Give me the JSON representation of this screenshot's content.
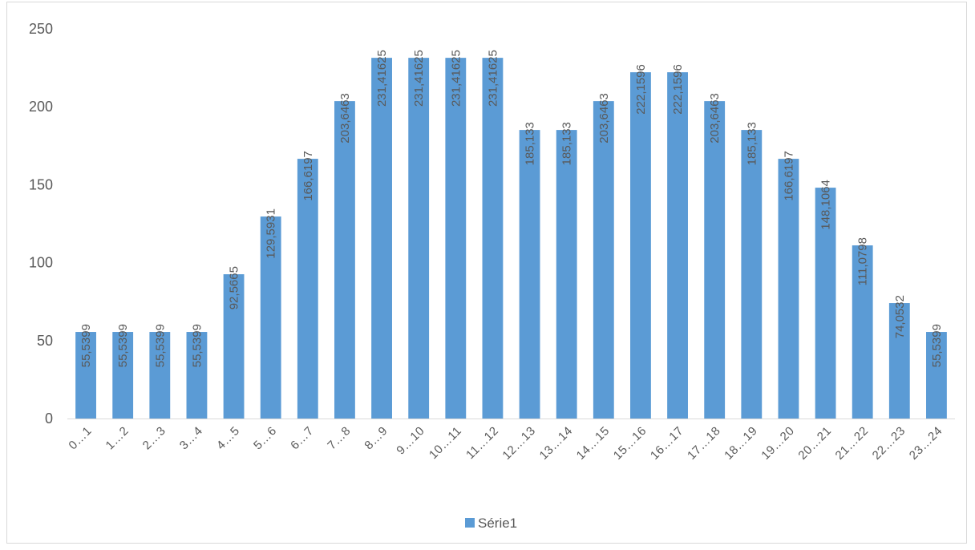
{
  "chart_data": {
    "type": "bar",
    "title": "",
    "xlabel": "",
    "ylabel": "",
    "ylim": [
      0,
      250
    ],
    "yticks": [
      0,
      50,
      100,
      150,
      200,
      250
    ],
    "grid": false,
    "legend_position": "bottom",
    "categories": [
      "0…1",
      "1…2",
      "2…3",
      "3…4",
      "4…5",
      "5…6",
      "6…7",
      "7…8",
      "8…9",
      "9…10",
      "10…11",
      "11…12",
      "12…13",
      "13…14",
      "14…15",
      "15…16",
      "16…17",
      "17…18",
      "18…19",
      "19…20",
      "20…21",
      "21…22",
      "22…23",
      "23…24"
    ],
    "series": [
      {
        "name": "Série1",
        "color": "#5b9bd5",
        "values": [
          55.5399,
          55.5399,
          55.5399,
          55.5399,
          92.5665,
          129.5931,
          166.6197,
          203.6463,
          231.41625,
          231.41625,
          231.41625,
          231.41625,
          185.133,
          185.133,
          203.6463,
          222.1596,
          222.1596,
          203.6463,
          185.133,
          166.6197,
          148.1064,
          111.0798,
          74.0532,
          55.5399
        ],
        "data_labels": [
          "55,5399",
          "55,5399",
          "55,5399",
          "55,5399",
          "92,5665",
          "129,5931",
          "166,6197",
          "203,6463",
          "231,41625",
          "231,41625",
          "231,41625",
          "231,41625",
          "185,133",
          "185,133",
          "203,6463",
          "222,1596",
          "222,1596",
          "203,6463",
          "185,133",
          "166,6197",
          "148,1064",
          "111,0798",
          "74,0532",
          "55,5399"
        ]
      }
    ]
  }
}
